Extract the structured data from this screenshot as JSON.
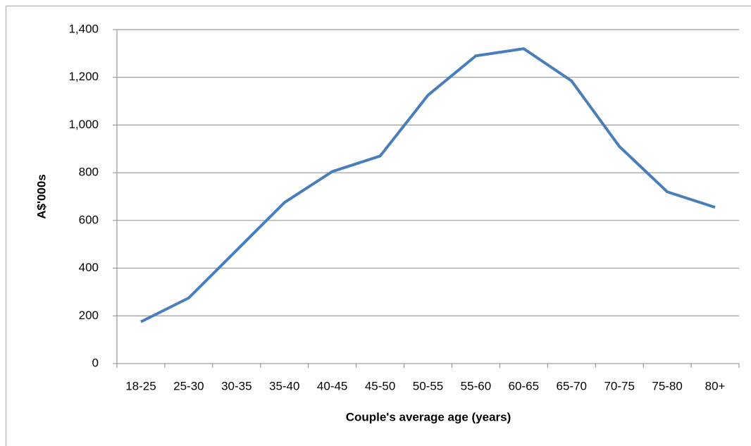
{
  "chart_data": {
    "type": "line",
    "x_label": "Couple's average age (years)",
    "y_label": "A$'000s",
    "categories": [
      "18-25",
      "25-30",
      "30-35",
      "35-40",
      "40-45",
      "45-50",
      "50-55",
      "55-60",
      "60-65",
      "65-70",
      "70-75",
      "75-80",
      "80+"
    ],
    "series": [
      {
        "name": "A$'000s",
        "color": "#4a7ebb",
        "values": [
          175,
          275,
          475,
          675,
          805,
          870,
          1125,
          1290,
          1320,
          1185,
          910,
          720,
          655
        ]
      }
    ],
    "ylim": [
      0,
      1400
    ],
    "yticks": [
      0,
      200,
      400,
      600,
      800,
      {
        "value": 1000,
        "label": "1,000"
      },
      {
        "value": 1200,
        "label": "1,200"
      },
      {
        "value": 1400,
        "label": "1,400"
      }
    ],
    "grid": true,
    "legend": false
  }
}
